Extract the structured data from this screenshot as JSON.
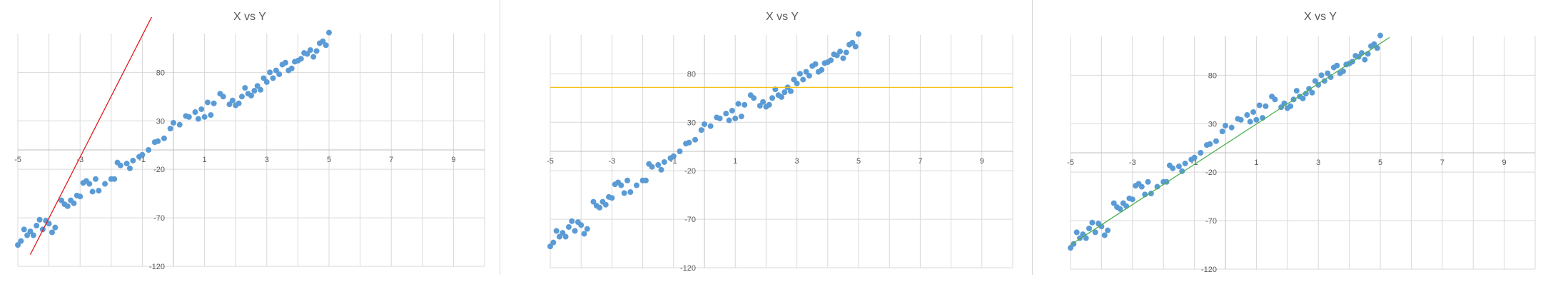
{
  "chart_data": [
    {
      "type": "scatter",
      "title": "X vs Y",
      "xlabel": "",
      "ylabel": "",
      "xlim": [
        -5,
        10
      ],
      "ylim": [
        -120,
        120
      ],
      "x_ticks": [
        -5,
        -3,
        -1,
        1,
        3,
        5,
        7,
        9
      ],
      "y_ticks": [
        80,
        30,
        -20,
        -70,
        -120
      ],
      "grid": true,
      "marker_color": "#5b9bd5",
      "trend_line": {
        "x": [
          -4.6,
          -0.7
        ],
        "y": [
          -108,
          137
        ],
        "color": "#e31a1c"
      },
      "x": [
        -5.0,
        -4.9,
        -4.8,
        -4.7,
        -4.6,
        -4.5,
        -4.4,
        -4.3,
        -4.2,
        -4.1,
        -4.0,
        -3.9,
        -3.8,
        -3.6,
        -3.5,
        -3.4,
        -3.3,
        -3.2,
        -3.1,
        -3.0,
        -2.9,
        -2.8,
        -2.7,
        -2.6,
        -2.5,
        -2.4,
        -2.2,
        -2.0,
        -1.9,
        -1.8,
        -1.7,
        -1.5,
        -1.4,
        -1.3,
        -1.1,
        -1.0,
        -0.8,
        -0.6,
        -0.5,
        -0.3,
        -0.1,
        0.0,
        0.2,
        0.4,
        0.5,
        0.7,
        0.8,
        0.9,
        1.0,
        1.1,
        1.2,
        1.3,
        1.5,
        1.6,
        1.8,
        1.9,
        2.0,
        2.1,
        2.2,
        2.3,
        2.4,
        2.5,
        2.6,
        2.7,
        2.8,
        2.9,
        3.0,
        3.1,
        3.2,
        3.3,
        3.4,
        3.5,
        3.6,
        3.7,
        3.8,
        3.9,
        4.0,
        4.1,
        4.2,
        4.3,
        4.4,
        4.5,
        4.6,
        4.7,
        4.8,
        4.9,
        5.0
      ],
      "y": [
        -98,
        -94,
        -82,
        -88,
        -84,
        -88,
        -78,
        -72,
        -82,
        -73,
        -76,
        -85,
        -80,
        -52,
        -56,
        -58,
        -52,
        -55,
        -47,
        -48,
        -34,
        -32,
        -35,
        -43,
        -30,
        -42,
        -35,
        -30,
        -30,
        -13,
        -16,
        -14,
        -19,
        -11,
        -7,
        -5,
        0,
        8,
        9,
        12,
        22,
        28,
        26,
        35,
        34,
        39,
        32,
        42,
        34,
        49,
        36,
        48,
        58,
        55,
        47,
        51,
        46,
        48,
        55,
        64,
        58,
        56,
        61,
        66,
        62,
        74,
        70,
        80,
        74,
        82,
        78,
        88,
        90,
        82,
        84,
        91,
        92,
        94,
        100,
        99,
        103,
        96,
        102,
        110,
        112,
        108,
        121
      ]
    },
    {
      "type": "scatter",
      "title": "X vs Y",
      "xlabel": "",
      "ylabel": "",
      "xlim": [
        -5,
        10
      ],
      "ylim": [
        -120,
        120
      ],
      "x_ticks": [
        -5,
        -3,
        -1,
        1,
        3,
        5,
        7,
        9
      ],
      "y_ticks": [
        80,
        30,
        -20,
        -70,
        -120
      ],
      "grid": true,
      "marker_color": "#5b9bd5",
      "trend_line": {
        "x": [
          -5,
          10
        ],
        "y": [
          66,
          66
        ],
        "color": "#f3c10f"
      },
      "x": [
        -5.0,
        -4.9,
        -4.8,
        -4.7,
        -4.6,
        -4.5,
        -4.4,
        -4.3,
        -4.2,
        -4.1,
        -4.0,
        -3.9,
        -3.8,
        -3.6,
        -3.5,
        -3.4,
        -3.3,
        -3.2,
        -3.1,
        -3.0,
        -2.9,
        -2.8,
        -2.7,
        -2.6,
        -2.5,
        -2.4,
        -2.2,
        -2.0,
        -1.9,
        -1.8,
        -1.7,
        -1.5,
        -1.4,
        -1.3,
        -1.1,
        -1.0,
        -0.8,
        -0.6,
        -0.5,
        -0.3,
        -0.1,
        0.0,
        0.2,
        0.4,
        0.5,
        0.7,
        0.8,
        0.9,
        1.0,
        1.1,
        1.2,
        1.3,
        1.5,
        1.6,
        1.8,
        1.9,
        2.0,
        2.1,
        2.2,
        2.3,
        2.4,
        2.5,
        2.6,
        2.7,
        2.8,
        2.9,
        3.0,
        3.1,
        3.2,
        3.3,
        3.4,
        3.5,
        3.6,
        3.7,
        3.8,
        3.9,
        4.0,
        4.1,
        4.2,
        4.3,
        4.4,
        4.5,
        4.6,
        4.7,
        4.8,
        4.9,
        5.0
      ],
      "y": [
        -98,
        -94,
        -82,
        -88,
        -84,
        -88,
        -78,
        -72,
        -82,
        -73,
        -76,
        -85,
        -80,
        -52,
        -56,
        -58,
        -52,
        -55,
        -47,
        -48,
        -34,
        -32,
        -35,
        -43,
        -30,
        -42,
        -35,
        -30,
        -30,
        -13,
        -16,
        -14,
        -19,
        -11,
        -7,
        -5,
        0,
        8,
        9,
        12,
        22,
        28,
        26,
        35,
        34,
        39,
        32,
        42,
        34,
        49,
        36,
        48,
        58,
        55,
        47,
        51,
        46,
        48,
        55,
        64,
        58,
        56,
        61,
        66,
        62,
        74,
        70,
        80,
        74,
        82,
        78,
        88,
        90,
        82,
        84,
        91,
        92,
        94,
        100,
        99,
        103,
        96,
        102,
        110,
        112,
        108,
        121
      ]
    },
    {
      "type": "scatter",
      "title": "X vs Y",
      "xlabel": "",
      "ylabel": "",
      "xlim": [
        -5,
        10
      ],
      "ylim": [
        -120,
        120
      ],
      "x_ticks": [
        -5,
        -3,
        -1,
        1,
        3,
        5,
        7,
        9
      ],
      "y_ticks": [
        80,
        30,
        -20,
        -70,
        -120
      ],
      "grid": true,
      "marker_color": "#5b9bd5",
      "trend_line": {
        "x": [
          -5,
          5.3
        ],
        "y": [
          -95,
          119
        ],
        "color": "#4caf50"
      },
      "x": [
        -5.0,
        -4.9,
        -4.8,
        -4.7,
        -4.6,
        -4.5,
        -4.4,
        -4.3,
        -4.2,
        -4.1,
        -4.0,
        -3.9,
        -3.8,
        -3.6,
        -3.5,
        -3.4,
        -3.3,
        -3.2,
        -3.1,
        -3.0,
        -2.9,
        -2.8,
        -2.7,
        -2.6,
        -2.5,
        -2.4,
        -2.2,
        -2.0,
        -1.9,
        -1.8,
        -1.7,
        -1.5,
        -1.4,
        -1.3,
        -1.1,
        -1.0,
        -0.8,
        -0.6,
        -0.5,
        -0.3,
        -0.1,
        0.0,
        0.2,
        0.4,
        0.5,
        0.7,
        0.8,
        0.9,
        1.0,
        1.1,
        1.2,
        1.3,
        1.5,
        1.6,
        1.8,
        1.9,
        2.0,
        2.1,
        2.2,
        2.3,
        2.4,
        2.5,
        2.6,
        2.7,
        2.8,
        2.9,
        3.0,
        3.1,
        3.2,
        3.3,
        3.4,
        3.5,
        3.6,
        3.7,
        3.8,
        3.9,
        4.0,
        4.1,
        4.2,
        4.3,
        4.4,
        4.5,
        4.6,
        4.7,
        4.8,
        4.9,
        5.0
      ],
      "y": [
        -98,
        -94,
        -82,
        -88,
        -84,
        -88,
        -78,
        -72,
        -82,
        -73,
        -76,
        -85,
        -80,
        -52,
        -56,
        -58,
        -52,
        -55,
        -47,
        -48,
        -34,
        -32,
        -35,
        -43,
        -30,
        -42,
        -35,
        -30,
        -30,
        -13,
        -16,
        -14,
        -19,
        -11,
        -7,
        -5,
        0,
        8,
        9,
        12,
        22,
        28,
        26,
        35,
        34,
        39,
        32,
        42,
        34,
        49,
        36,
        48,
        58,
        55,
        47,
        51,
        46,
        48,
        55,
        64,
        58,
        56,
        61,
        66,
        62,
        74,
        70,
        80,
        74,
        82,
        78,
        88,
        90,
        82,
        84,
        91,
        92,
        94,
        100,
        99,
        103,
        96,
        102,
        110,
        112,
        108,
        121
      ]
    }
  ]
}
